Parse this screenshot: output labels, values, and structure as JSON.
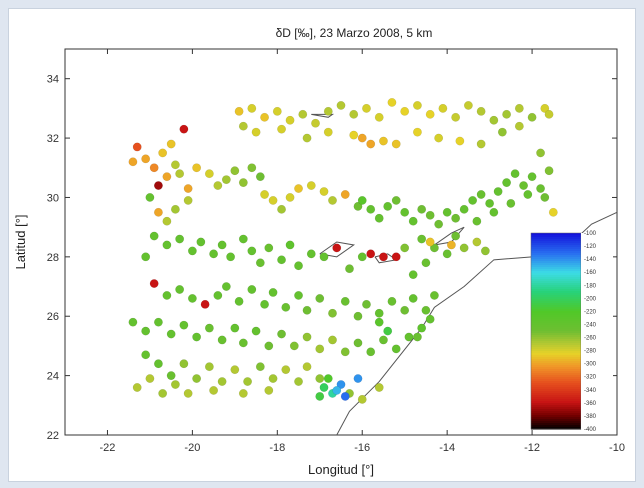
{
  "chart_data": {
    "type": "scatter",
    "title": "δD [‰], 23 Marzo 2008, 5 km",
    "xlabel": "Longitud [°]",
    "ylabel": "Latitud [°]",
    "xlim": [
      -23,
      -10
    ],
    "ylim": [
      22,
      35
    ],
    "xticks": [
      -22,
      -20,
      -18,
      -16,
      -14,
      -12,
      -10
    ],
    "yticks": [
      22,
      24,
      26,
      28,
      30,
      32,
      34
    ],
    "x_tick_labels": [
      "-22",
      "-20",
      "-18",
      "-16",
      "-14",
      "-12",
      "-10"
    ],
    "y_tick_labels": [
      "22",
      "24",
      "26",
      "28",
      "30",
      "32",
      "34"
    ],
    "grid": false,
    "colorbar": {
      "range": [
        -400,
        -100
      ],
      "labels": [
        "-100",
        "-120",
        "-140",
        "-160",
        "-180",
        "-200",
        "-220",
        "-240",
        "-260",
        "-280",
        "-300",
        "-320",
        "-340",
        "-360",
        "-380",
        "-400"
      ]
    },
    "points": [
      [
        -21.3,
        31.7,
        -330
      ],
      [
        -21.1,
        31.3,
        -300
      ],
      [
        -20.9,
        31.0,
        -310
      ],
      [
        -21.4,
        31.2,
        -300
      ],
      [
        -20.7,
        31.5,
        -290
      ],
      [
        -20.5,
        31.8,
        -290
      ],
      [
        -20.2,
        32.3,
        -360
      ],
      [
        -20.8,
        30.4,
        -370
      ],
      [
        -20.6,
        30.7,
        -300
      ],
      [
        -20.4,
        31.1,
        -270
      ],
      [
        -20.3,
        30.8,
        -270
      ],
      [
        -20.1,
        30.3,
        -300
      ],
      [
        -19.9,
        31.0,
        -290
      ],
      [
        -19.6,
        30.8,
        -280
      ],
      [
        -19.4,
        30.4,
        -270
      ],
      [
        -19.2,
        30.6,
        -265
      ],
      [
        -19.0,
        30.9,
        -260
      ],
      [
        -18.8,
        30.5,
        -260
      ],
      [
        -18.6,
        31.0,
        -255
      ],
      [
        -18.4,
        30.7,
        -250
      ],
      [
        -18.3,
        30.1,
        -280
      ],
      [
        -18.1,
        29.9,
        -280
      ],
      [
        -17.9,
        29.6,
        -265
      ],
      [
        -17.7,
        30.0,
        -280
      ],
      [
        -17.5,
        30.3,
        -290
      ],
      [
        -17.2,
        30.4,
        -280
      ],
      [
        -16.9,
        30.2,
        -280
      ],
      [
        -16.7,
        29.9,
        -270
      ],
      [
        -16.4,
        30.1,
        -300
      ],
      [
        -16.1,
        29.7,
        -250
      ],
      [
        -16.0,
        29.9,
        -230
      ],
      [
        -15.8,
        29.6,
        -240
      ],
      [
        -15.6,
        29.3,
        -240
      ],
      [
        -15.4,
        29.7,
        -240
      ],
      [
        -15.2,
        29.9,
        -250
      ],
      [
        -15.0,
        29.5,
        -240
      ],
      [
        -14.8,
        29.2,
        -240
      ],
      [
        -14.6,
        29.6,
        -250
      ],
      [
        -14.4,
        29.4,
        -250
      ],
      [
        -14.2,
        29.1,
        -250
      ],
      [
        -14.0,
        29.5,
        -240
      ],
      [
        -13.8,
        29.3,
        -250
      ],
      [
        -13.6,
        29.6,
        -240
      ],
      [
        -13.4,
        29.9,
        -240
      ],
      [
        -13.2,
        30.1,
        -245
      ],
      [
        -13.0,
        29.8,
        -240
      ],
      [
        -12.8,
        30.2,
        -240
      ],
      [
        -12.6,
        30.5,
        -240
      ],
      [
        -12.4,
        30.8,
        -240
      ],
      [
        -12.2,
        30.4,
        -245
      ],
      [
        -12.0,
        30.7,
        -240
      ],
      [
        -11.8,
        30.3,
        -245
      ],
      [
        -11.6,
        30.9,
        -255
      ],
      [
        -11.8,
        31.5,
        -260
      ],
      [
        -12.1,
        30.1,
        -240
      ],
      [
        -11.5,
        29.5,
        -285
      ],
      [
        -11.7,
        30.0,
        -250
      ],
      [
        -12.5,
        29.8,
        -245
      ],
      [
        -12.9,
        29.5,
        -240
      ],
      [
        -13.3,
        29.2,
        -245
      ],
      [
        -18.9,
        32.9,
        -290
      ],
      [
        -18.6,
        33.0,
        -280
      ],
      [
        -18.3,
        32.7,
        -290
      ],
      [
        -18.0,
        32.9,
        -280
      ],
      [
        -17.7,
        32.6,
        -280
      ],
      [
        -17.4,
        32.8,
        -270
      ],
      [
        -17.1,
        32.5,
        -275
      ],
      [
        -16.8,
        32.9,
        -270
      ],
      [
        -16.5,
        33.1,
        -270
      ],
      [
        -16.2,
        32.8,
        -270
      ],
      [
        -15.9,
        33.0,
        -280
      ],
      [
        -15.6,
        32.7,
        -280
      ],
      [
        -15.3,
        33.2,
        -285
      ],
      [
        -15.0,
        32.9,
        -285
      ],
      [
        -14.7,
        33.1,
        -280
      ],
      [
        -14.4,
        32.8,
        -285
      ],
      [
        -14.1,
        33.0,
        -280
      ],
      [
        -13.8,
        32.7,
        -275
      ],
      [
        -13.5,
        33.1,
        -275
      ],
      [
        -13.2,
        32.9,
        -270
      ],
      [
        -12.9,
        32.6,
        -265
      ],
      [
        -12.6,
        32.8,
        -265
      ],
      [
        -12.3,
        33.0,
        -270
      ],
      [
        -12.0,
        32.7,
        -260
      ],
      [
        -11.7,
        33.0,
        -280
      ],
      [
        -18.8,
        32.4,
        -270
      ],
      [
        -18.5,
        32.2,
        -280
      ],
      [
        -17.9,
        32.3,
        -280
      ],
      [
        -17.3,
        32.0,
        -270
      ],
      [
        -16.8,
        32.2,
        -280
      ],
      [
        -16.2,
        32.1,
        -285
      ],
      [
        -15.8,
        31.8,
        -300
      ],
      [
        -15.5,
        31.9,
        -290
      ],
      [
        -15.2,
        31.8,
        -290
      ],
      [
        -14.7,
        32.2,
        -285
      ],
      [
        -14.2,
        32.0,
        -280
      ],
      [
        -13.7,
        31.9,
        -285
      ],
      [
        -13.2,
        31.8,
        -270
      ],
      [
        -12.7,
        32.2,
        -260
      ],
      [
        -12.3,
        32.4,
        -270
      ],
      [
        -11.6,
        32.8,
        -275
      ],
      [
        -16.0,
        32.0,
        -300
      ],
      [
        -21.0,
        30.0,
        -240
      ],
      [
        -20.8,
        29.5,
        -300
      ],
      [
        -20.6,
        29.2,
        -270
      ],
      [
        -20.4,
        29.6,
        -265
      ],
      [
        -20.1,
        29.9,
        -270
      ],
      [
        -20.9,
        28.7,
        -240
      ],
      [
        -20.6,
        28.4,
        -240
      ],
      [
        -21.1,
        28.0,
        -240
      ],
      [
        -20.3,
        28.6,
        -240
      ],
      [
        -20.0,
        28.2,
        -240
      ],
      [
        -19.8,
        28.5,
        -240
      ],
      [
        -19.5,
        28.1,
        -240
      ],
      [
        -19.3,
        28.4,
        -240
      ],
      [
        -19.1,
        28.0,
        -240
      ],
      [
        -18.8,
        28.6,
        -240
      ],
      [
        -18.6,
        28.2,
        -240
      ],
      [
        -18.4,
        27.8,
        -245
      ],
      [
        -18.2,
        28.3,
        -245
      ],
      [
        -17.9,
        27.9,
        -240
      ],
      [
        -17.7,
        28.4,
        -235
      ],
      [
        -17.5,
        27.7,
        -240
      ],
      [
        -17.2,
        28.1,
        -240
      ],
      [
        -16.9,
        28.0,
        -240
      ],
      [
        -16.6,
        28.3,
        -360
      ],
      [
        -16.3,
        27.6,
        -250
      ],
      [
        -16.0,
        28.0,
        -240
      ],
      [
        -15.8,
        28.1,
        -360
      ],
      [
        -15.5,
        28.0,
        -360
      ],
      [
        -15.2,
        28.0,
        -360
      ],
      [
        -14.8,
        27.4,
        -240
      ],
      [
        -14.5,
        27.8,
        -245
      ],
      [
        -14.3,
        28.3,
        -250
      ],
      [
        -14.0,
        28.1,
        -245
      ],
      [
        -13.8,
        28.7,
        -250
      ],
      [
        -13.6,
        28.3,
        -260
      ],
      [
        -13.3,
        28.5,
        -270
      ],
      [
        -13.1,
        28.2,
        -260
      ],
      [
        -14.6,
        28.6,
        -245
      ],
      [
        -15.0,
        28.3,
        -255
      ],
      [
        -14.4,
        28.5,
        -290
      ],
      [
        -13.9,
        28.4,
        -295
      ],
      [
        -20.9,
        27.1,
        -360
      ],
      [
        -20.6,
        26.7,
        -240
      ],
      [
        -20.3,
        26.9,
        -240
      ],
      [
        -20.0,
        26.6,
        -240
      ],
      [
        -19.7,
        26.4,
        -360
      ],
      [
        -19.4,
        26.7,
        -240
      ],
      [
        -19.2,
        27.0,
        -240
      ],
      [
        -18.9,
        26.5,
        -240
      ],
      [
        -18.6,
        26.9,
        -240
      ],
      [
        -18.3,
        26.4,
        -240
      ],
      [
        -18.1,
        26.8,
        -240
      ],
      [
        -17.8,
        26.3,
        -245
      ],
      [
        -17.5,
        26.7,
        -240
      ],
      [
        -17.3,
        26.2,
        -250
      ],
      [
        -17.0,
        26.6,
        -250
      ],
      [
        -16.7,
        26.1,
        -255
      ],
      [
        -16.4,
        26.5,
        -245
      ],
      [
        -16.1,
        26.0,
        -250
      ],
      [
        -15.9,
        26.4,
        -250
      ],
      [
        -15.6,
        26.1,
        -240
      ],
      [
        -15.3,
        26.5,
        -245
      ],
      [
        -15.0,
        26.2,
        -250
      ],
      [
        -14.8,
        26.6,
        -240
      ],
      [
        -14.5,
        26.2,
        -245
      ],
      [
        -14.3,
        26.7,
        -245
      ],
      [
        -21.4,
        25.8,
        -240
      ],
      [
        -21.1,
        25.5,
        -240
      ],
      [
        -20.8,
        25.8,
        -240
      ],
      [
        -20.5,
        25.4,
        -240
      ],
      [
        -20.2,
        25.7,
        -240
      ],
      [
        -19.9,
        25.3,
        -240
      ],
      [
        -19.6,
        25.6,
        -245
      ],
      [
        -19.3,
        25.2,
        -245
      ],
      [
        -19.0,
        25.6,
        -240
      ],
      [
        -18.8,
        25.1,
        -245
      ],
      [
        -18.5,
        25.5,
        -240
      ],
      [
        -18.2,
        25.0,
        -250
      ],
      [
        -17.9,
        25.4,
        -250
      ],
      [
        -17.6,
        25.0,
        -255
      ],
      [
        -17.3,
        25.3,
        -260
      ],
      [
        -17.0,
        24.9,
        -265
      ],
      [
        -16.7,
        25.2,
        -265
      ],
      [
        -16.4,
        24.8,
        -255
      ],
      [
        -16.1,
        25.1,
        -250
      ],
      [
        -15.8,
        24.8,
        -245
      ],
      [
        -15.5,
        25.2,
        -245
      ],
      [
        -15.2,
        24.9,
        -240
      ],
      [
        -14.9,
        25.3,
        -240
      ],
      [
        -14.6,
        25.6,
        -235
      ],
      [
        -14.4,
        25.9,
        -240
      ],
      [
        -14.7,
        25.3,
        -245
      ],
      [
        -21.1,
        24.7,
        -240
      ],
      [
        -20.8,
        24.4,
        -240
      ],
      [
        -20.5,
        24.0,
        -245
      ],
      [
        -20.2,
        24.4,
        -260
      ],
      [
        -19.9,
        23.9,
        -260
      ],
      [
        -19.6,
        24.3,
        -265
      ],
      [
        -19.3,
        23.8,
        -265
      ],
      [
        -19.0,
        24.2,
        -270
      ],
      [
        -18.7,
        23.8,
        -265
      ],
      [
        -18.4,
        24.3,
        -255
      ],
      [
        -18.1,
        23.9,
        -265
      ],
      [
        -17.8,
        24.2,
        -270
      ],
      [
        -17.5,
        23.8,
        -265
      ],
      [
        -17.3,
        24.3,
        -270
      ],
      [
        -17.0,
        23.9,
        -260
      ],
      [
        -21.3,
        23.6,
        -270
      ],
      [
        -21.0,
        23.9,
        -270
      ],
      [
        -20.7,
        23.4,
        -265
      ],
      [
        -20.4,
        23.7,
        -265
      ],
      [
        -20.1,
        23.4,
        -270
      ],
      [
        -19.5,
        23.5,
        -270
      ],
      [
        -18.8,
        23.4,
        -270
      ],
      [
        -18.2,
        23.5,
        -270
      ],
      [
        -16.3,
        23.4,
        -260
      ],
      [
        -16.0,
        23.2,
        -270
      ],
      [
        -15.6,
        23.6,
        -270
      ],
      [
        -16.9,
        23.6,
        -200
      ],
      [
        -16.7,
        23.4,
        -180
      ],
      [
        -16.5,
        23.7,
        -140
      ],
      [
        -16.4,
        23.3,
        -130
      ],
      [
        -16.6,
        23.5,
        -150
      ],
      [
        -16.1,
        23.9,
        -140
      ],
      [
        -17.0,
        23.3,
        -210
      ],
      [
        -16.8,
        23.9,
        -220
      ],
      [
        -15.4,
        25.5,
        -210
      ],
      [
        -15.6,
        25.8,
        -230
      ]
    ]
  }
}
